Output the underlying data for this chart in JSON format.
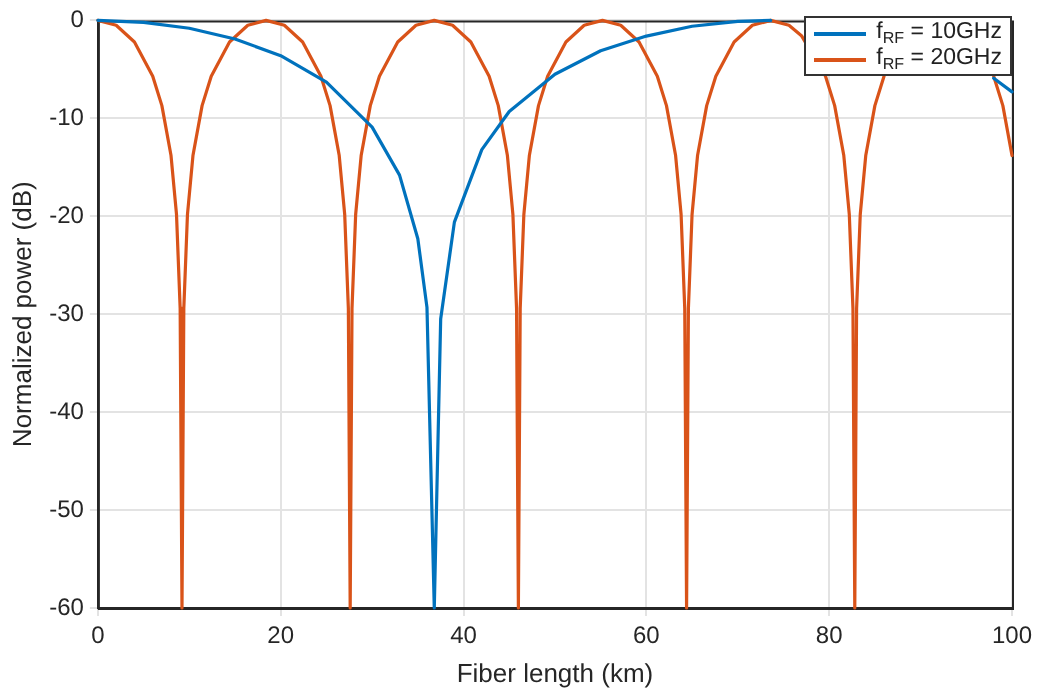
{
  "chart_data": {
    "type": "line",
    "xlabel": "Fiber length (km)",
    "ylabel": "Normalized power (dB)",
    "xlim": [
      0,
      100
    ],
    "xticks": [
      0,
      20,
      40,
      60,
      80,
      100
    ],
    "ylim": [
      -60,
      0
    ],
    "yticks": [
      -60,
      -50,
      -40,
      -30,
      -20,
      -10,
      0
    ],
    "grid": true,
    "legend": "top right",
    "marker": "none",
    "line_style": "solid",
    "series": [
      {
        "name": "f$_{RF}$ = 10GHz",
        "color": "#0072bd",
        "x": [
          0,
          5,
          10,
          15,
          20,
          25,
          30,
          33,
          35,
          36,
          36.8,
          37.5,
          39,
          42,
          45,
          50,
          55,
          60,
          65,
          70,
          73.6,
          80,
          85,
          90,
          98,
          100
        ],
        "values": [
          0,
          -0.2,
          -0.8,
          -1.9,
          -3.6,
          -6.3,
          -10.9,
          -15.8,
          -22.3,
          -29.3,
          -60,
          -30.5,
          -20.6,
          -13.2,
          -9.3,
          -5.5,
          -3.1,
          -1.6,
          -0.6,
          -0.1,
          0,
          null,
          null,
          null,
          -5.9,
          -7.3
        ]
      },
      {
        "name": "f$_{RF}$ = 20GHz",
        "color": "#d95319",
        "x": [
          0,
          2,
          4,
          6,
          7,
          8,
          8.6,
          9,
          9.2,
          9.4,
          9.8,
          10.4,
          11.4,
          12.4,
          14.4,
          16.4,
          18.4,
          20.4,
          22.4,
          24.4,
          25.4,
          26.4,
          27,
          27.4,
          27.6,
          27.8,
          28.2,
          28.8,
          29.8,
          30.8,
          32.8,
          34.8,
          36.8,
          38.8,
          40.8,
          42.8,
          43.8,
          44.8,
          45.4,
          45.8,
          46,
          46.2,
          46.6,
          47.2,
          48.2,
          49.2,
          51.2,
          53.2,
          55.2,
          57.2,
          59.2,
          61.2,
          62.2,
          63.2,
          63.8,
          64.2,
          64.4,
          64.6,
          65,
          65.6,
          66.6,
          67.6,
          69.6,
          71.6,
          73.6,
          75.6,
          77,
          79.6,
          80.6,
          81.6,
          82.2,
          82.6,
          82.8,
          83,
          83.4,
          84,
          85,
          86,
          88,
          90,
          92,
          94,
          96,
          98,
          99,
          100
        ],
        "values": [
          0,
          -0.5,
          -2.2,
          -5.7,
          -8.7,
          -13.8,
          -19.8,
          -29.4,
          -60,
          -29.4,
          -19.8,
          -13.8,
          -8.7,
          -5.7,
          -2.2,
          -0.5,
          0,
          -0.5,
          -2.2,
          -5.7,
          -8.7,
          -13.8,
          -19.8,
          -29.4,
          -60,
          -29.4,
          -19.8,
          -13.8,
          -8.7,
          -5.7,
          -2.2,
          -0.5,
          0,
          -0.5,
          -2.2,
          -5.7,
          -8.7,
          -13.8,
          -19.8,
          -29.4,
          -60,
          -29.4,
          -19.8,
          -13.8,
          -8.7,
          -5.7,
          -2.2,
          -0.5,
          0,
          -0.5,
          -2.2,
          -5.7,
          -8.7,
          -13.8,
          -19.8,
          -29.4,
          -60,
          -29.4,
          -19.8,
          -13.8,
          -8.7,
          -5.7,
          -2.2,
          -0.5,
          0,
          -0.5,
          -1.6,
          -5.7,
          -8.7,
          -13.8,
          -19.8,
          -29.4,
          -60,
          -29.4,
          -19.8,
          -13.8,
          -8.7,
          -5.7,
          null,
          null,
          null,
          null,
          null,
          -5.7,
          -8.7,
          -13.8
        ]
      }
    ]
  }
}
